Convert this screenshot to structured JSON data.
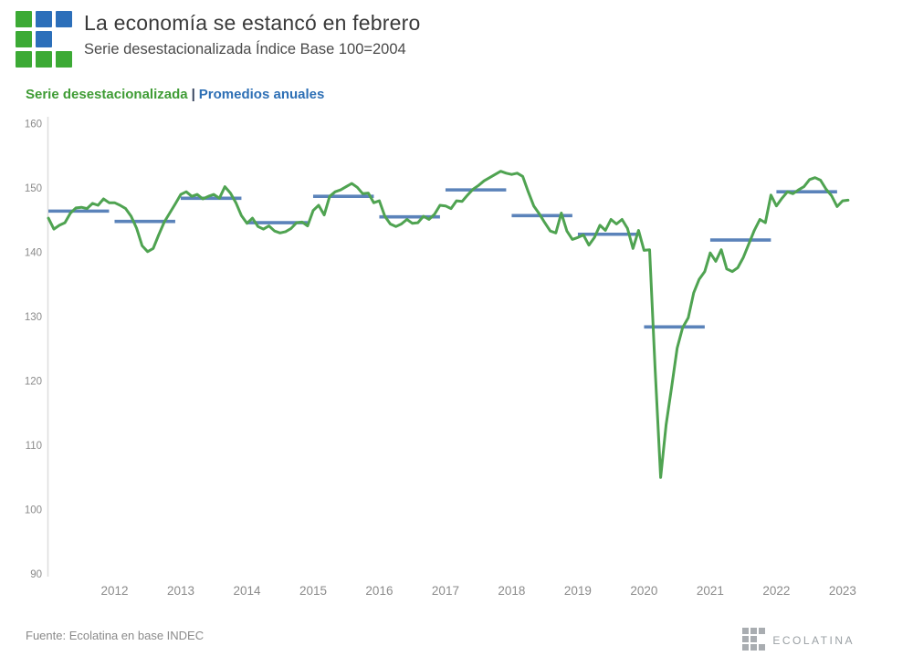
{
  "header": {
    "title": "La economía se estancó en febrero",
    "subtitle": "Serie desestacionalizada Índice Base 100=2004"
  },
  "logo": {
    "green": "#3CAA35",
    "blue": "#2C6FBA",
    "pattern": [
      [
        "green",
        "blue",
        "blue"
      ],
      [
        "green",
        "blue",
        "none"
      ],
      [
        "green",
        "green",
        "green"
      ]
    ]
  },
  "legend": {
    "series1_label": "Serie desestacionalizada",
    "separator": "|",
    "series2_label": "Promedios anuales",
    "series1_color": "#3F9C35",
    "series2_color": "#2D6FB5"
  },
  "footer": {
    "source": "Fuente: Ecolatina en base INDEC",
    "brand": "EcoLatina",
    "brand_color": "#9aa0a4"
  },
  "chart_data": {
    "type": "line",
    "title": "La economía se estancó en febrero",
    "subtitle": "Serie desestacionalizada Índice Base 100=2004",
    "xlabel": "",
    "ylabel": "Índice Base 100=2004",
    "ylim": [
      90,
      160
    ],
    "yticks": [
      90,
      100,
      110,
      120,
      130,
      140,
      150,
      160
    ],
    "xticks_years": [
      2012,
      2013,
      2014,
      2015,
      2016,
      2017,
      2018,
      2019,
      2020,
      2021,
      2022,
      2023
    ],
    "grid": false,
    "legend_position": "top-left",
    "axis_color": "#dddddd",
    "tick_label_color": "#8b8b8b",
    "series": [
      {
        "name": "Serie desestacionalizada",
        "type": "line",
        "color": "#4FA351",
        "start": "2011-01",
        "end": "2023-02",
        "freq": "monthly",
        "values": [
          145.3,
          143.6,
          144.2,
          144.6,
          146.1,
          146.9,
          147.0,
          146.8,
          147.6,
          147.3,
          148.3,
          147.7,
          147.7,
          147.3,
          146.8,
          145.6,
          143.7,
          141.0,
          140.1,
          140.6,
          142.7,
          144.7,
          146.1,
          147.5,
          149.0,
          149.4,
          148.7,
          149.0,
          148.3,
          148.7,
          149.0,
          148.4,
          150.2,
          149.2,
          147.7,
          145.7,
          144.5,
          145.3,
          144.0,
          143.6,
          144.1,
          143.3,
          143.0,
          143.2,
          143.7,
          144.6,
          144.7,
          144.1,
          146.5,
          147.3,
          145.8,
          148.7,
          149.4,
          149.7,
          150.2,
          150.7,
          150.1,
          149.1,
          149.2,
          147.7,
          148.0,
          145.6,
          144.4,
          144.0,
          144.4,
          145.1,
          144.5,
          144.6,
          145.6,
          145.1,
          145.9,
          147.3,
          147.2,
          146.8,
          148.0,
          147.9,
          148.9,
          149.8,
          150.4,
          151.1,
          151.6,
          152.1,
          152.6,
          152.3,
          152.1,
          152.3,
          151.8,
          149.4,
          147.2,
          146.0,
          144.6,
          143.3,
          143.0,
          146.1,
          143.3,
          142.0,
          142.3,
          142.7,
          141.1,
          142.3,
          144.2,
          143.4,
          145.1,
          144.4,
          145.1,
          143.7,
          140.6,
          143.4,
          140.3,
          140.4,
          122.0,
          105.0,
          113.2,
          119.0,
          125.1,
          128.3,
          129.8,
          133.7,
          135.8,
          137.0,
          139.9,
          138.6,
          140.4,
          137.4,
          137.0,
          137.6,
          139.2,
          141.3,
          143.4,
          145.1,
          144.6,
          148.9,
          147.2,
          148.4,
          149.4,
          149.1,
          149.7,
          150.2,
          151.3,
          151.6,
          151.2,
          149.8,
          148.8,
          147.1,
          148.0,
          148.1
        ]
      },
      {
        "name": "Promedios anuales",
        "type": "annual-average-segments",
        "color": "#5B83BA",
        "years": [
          2011,
          2012,
          2013,
          2014,
          2015,
          2016,
          2017,
          2018,
          2019,
          2020,
          2021,
          2022
        ],
        "values": [
          146.4,
          144.8,
          148.4,
          144.6,
          148.7,
          145.5,
          149.7,
          145.7,
          142.8,
          128.4,
          141.9,
          149.4
        ]
      }
    ]
  }
}
